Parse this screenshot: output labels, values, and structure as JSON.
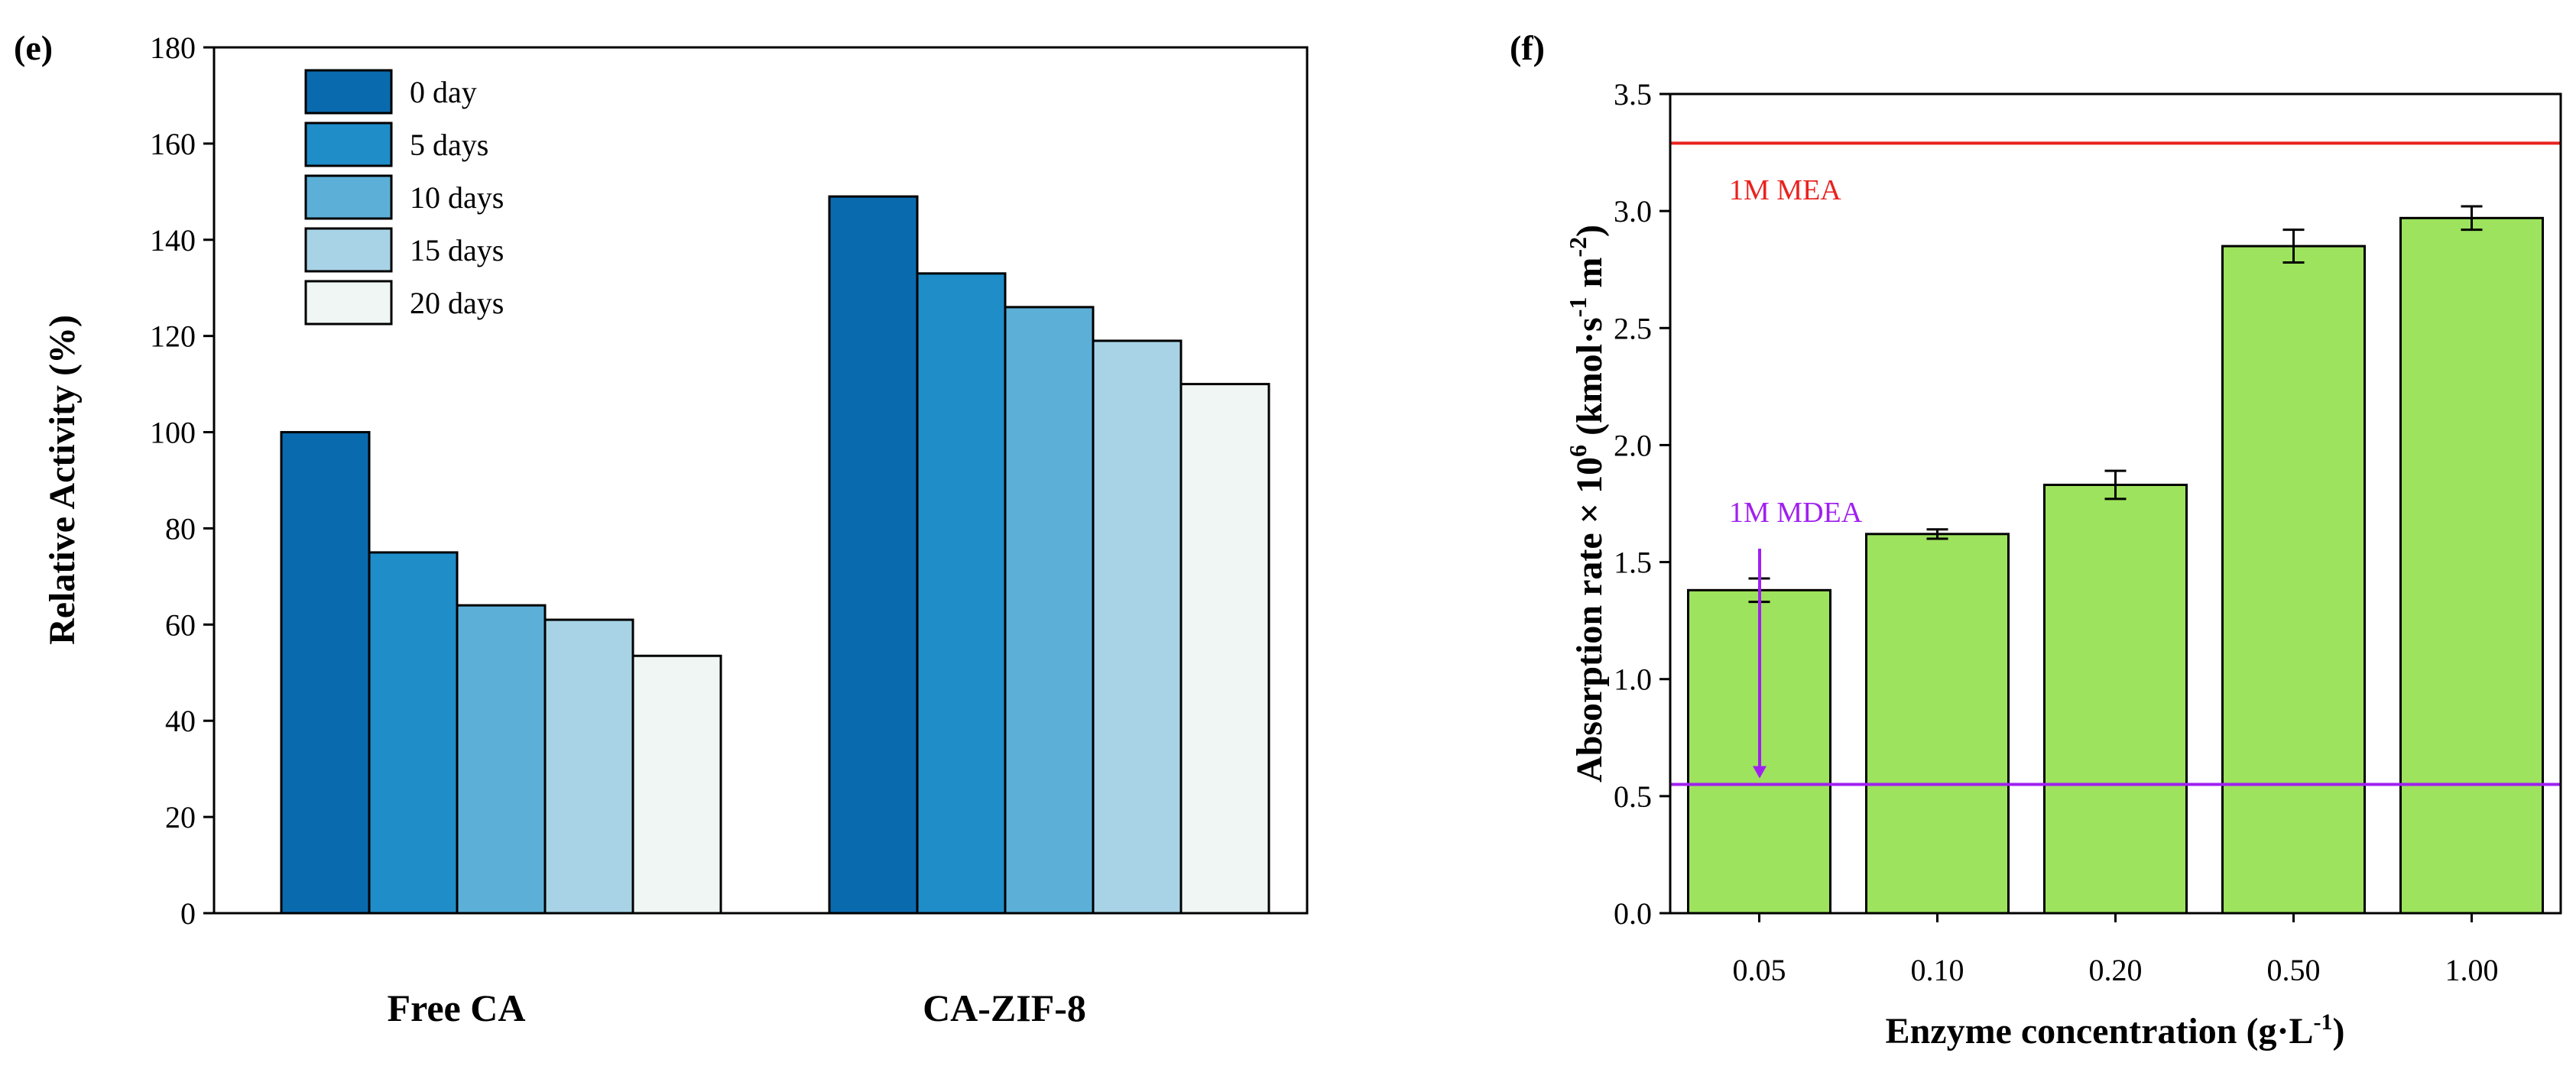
{
  "chart_data": [
    {
      "panel": "(e)",
      "type": "bar",
      "ylabel": "Relative Activity (%)",
      "xlabel": "",
      "ylim": [
        0,
        180
      ],
      "yticks": [
        0,
        20,
        40,
        60,
        80,
        100,
        120,
        140,
        160,
        180
      ],
      "categories": [
        "Free CA",
        "CA-ZIF-8"
      ],
      "series": [
        {
          "name": "0 day",
          "color": "#0a6aae",
          "values": [
            100,
            149
          ]
        },
        {
          "name": "5 days",
          "color": "#1f8dc8",
          "values": [
            75,
            133
          ]
        },
        {
          "name": "10 days",
          "color": "#5cb0d8",
          "values": [
            64,
            126
          ]
        },
        {
          "name": "15 days",
          "color": "#a8d3e6",
          "values": [
            61,
            119
          ]
        },
        {
          "name": "20 days",
          "color": "#eff6f3",
          "values": [
            53.5,
            110
          ]
        }
      ],
      "legend_position": "top-left"
    },
    {
      "panel": "(f)",
      "type": "bar",
      "xlabel": "Enzyme concentration (g·L-1)",
      "ylabel_parts": [
        "Absorption rate × 10",
        "6",
        " (kmol·s",
        "-1",
        " m",
        "-2",
        ")"
      ],
      "ylim": [
        0,
        3.5
      ],
      "yticks": [
        "0.0",
        "0.5",
        "1.0",
        "1.5",
        "2.0",
        "2.5",
        "3.0",
        "3.5"
      ],
      "categories": [
        "0.05",
        "0.10",
        "0.20",
        "0.50",
        "1.00"
      ],
      "values": [
        1.38,
        1.62,
        1.83,
        2.85,
        2.97
      ],
      "errors": [
        0.05,
        0.02,
        0.06,
        0.07,
        0.05
      ],
      "bar_color": "#9de35d",
      "reference_lines": [
        {
          "label": "1M MEA",
          "value": 3.29,
          "color": "#e8231f"
        },
        {
          "label": "1M MDEA",
          "value": 0.55,
          "color": "#a020f0"
        }
      ]
    }
  ]
}
